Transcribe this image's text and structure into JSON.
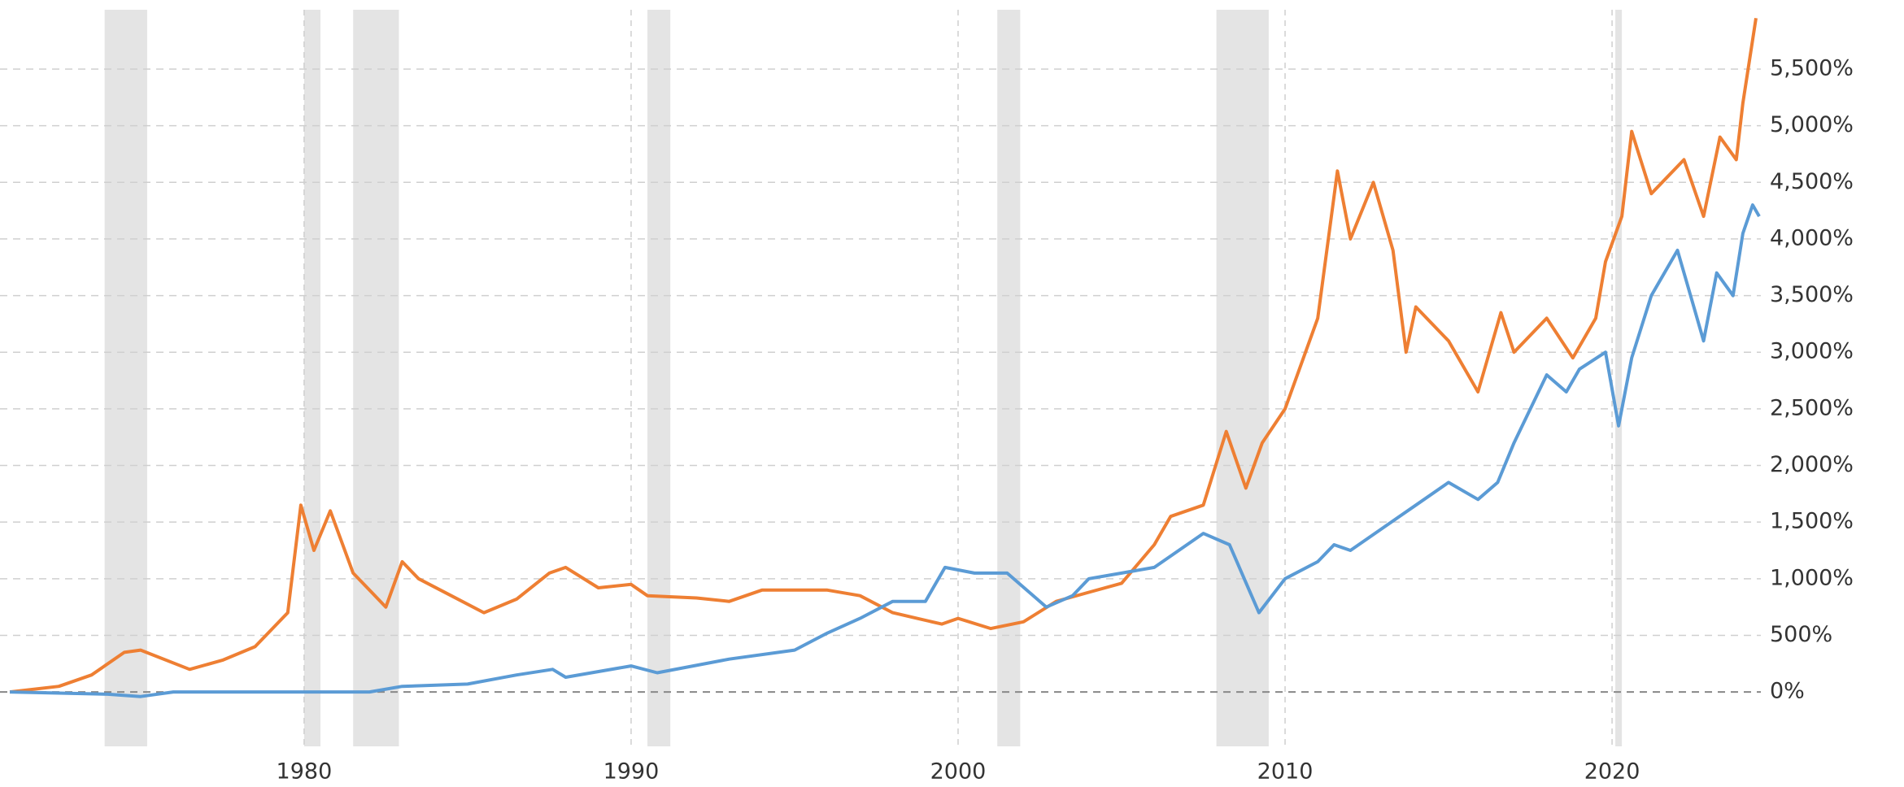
{
  "chart_data": {
    "type": "line",
    "xlim": [
      1970.7,
      2024.55
    ],
    "xticks": [
      1980,
      1990,
      2000,
      2010,
      2020
    ],
    "ylim": [
      -480,
      6110
    ],
    "yticks": [
      {
        "value": 0,
        "label": "0%"
      },
      {
        "value": 500,
        "label": "500%"
      },
      {
        "value": 1000,
        "label": "1,000%"
      },
      {
        "value": 1500,
        "label": "1,500%"
      },
      {
        "value": 2000,
        "label": "2,000%"
      },
      {
        "value": 2500,
        "label": "2,500%"
      },
      {
        "value": 3000,
        "label": "3,000%"
      },
      {
        "value": 3500,
        "label": "3,500%"
      },
      {
        "value": 4000,
        "label": "4,000%"
      },
      {
        "value": 4500,
        "label": "4,500%"
      },
      {
        "value": 5000,
        "label": "5,000%"
      },
      {
        "value": 5500,
        "label": "5,500%"
      }
    ],
    "grid": true,
    "shaded_ranges": [
      [
        1973.9,
        1975.2
      ],
      [
        1980.0,
        1980.5
      ],
      [
        1981.5,
        1982.9
      ],
      [
        1990.5,
        1991.2
      ],
      [
        2001.2,
        2001.9
      ],
      [
        2007.9,
        2009.5
      ],
      [
        2020.1,
        2020.3
      ]
    ],
    "shade_color": "#e4e4e4",
    "series": [
      {
        "color": "#ee7f33",
        "x": [
          1971,
          1972.5,
          1973.5,
          1974.5,
          1975,
          1976.5,
          1977.5,
          1978.5,
          1979.5,
          1979.9,
          1980.3,
          1980.8,
          1981.5,
          1982,
          1982.5,
          1983,
          1983.5,
          1984.5,
          1985.5,
          1986.5,
          1987.5,
          1988,
          1989,
          1990,
          1990.5,
          1992,
          1993,
          1994,
          1996,
          1997,
          1998,
          1999.5,
          2000,
          2001,
          2002,
          2003,
          2004,
          2005,
          2006,
          2006.5,
          2007.5,
          2008.2,
          2008.8,
          2009.3,
          2010,
          2010.5,
          2011,
          2011.6,
          2012,
          2012.7,
          2013.3,
          2013.7,
          2014,
          2015,
          2015.9,
          2016.6,
          2017,
          2018,
          2018.8,
          2019.5,
          2019.8,
          2020.3,
          2020.6,
          2021.2,
          2022.2,
          2022.8,
          2023.3,
          2023.8,
          2024,
          2024.4
        ],
        "values": [
          0,
          50,
          150,
          350,
          370,
          200,
          280,
          400,
          700,
          1650,
          1250,
          1600,
          1050,
          900,
          750,
          1150,
          1000,
          850,
          700,
          820,
          1050,
          1100,
          920,
          950,
          850,
          830,
          800,
          900,
          900,
          850,
          700,
          600,
          650,
          560,
          620,
          800,
          880,
          960,
          1300,
          1550,
          1650,
          2300,
          1800,
          2200,
          2500,
          2900,
          3300,
          4600,
          4000,
          4500,
          3900,
          3000,
          3400,
          3100,
          2650,
          3350,
          3000,
          3300,
          2950,
          3300,
          3800,
          4200,
          4950,
          4400,
          4700,
          4200,
          4900,
          4700,
          5200,
          5950
        ]
      },
      {
        "color": "#5b9bd5",
        "x": [
          1971,
          1974,
          1975,
          1976,
          1980,
          1982,
          1983,
          1985,
          1986.5,
          1987.6,
          1988,
          1990,
          1990.8,
          1993,
          1995,
          1996,
          1997,
          1998,
          1999,
          1999.6,
          2000.5,
          2001.5,
          2002.7,
          2003.5,
          2004,
          2005,
          2006,
          2007.5,
          2008.3,
          2009.2,
          2010,
          2011,
          2011.5,
          2012,
          2013,
          2014,
          2015,
          2015.9,
          2016.5,
          2017,
          2018,
          2018.6,
          2019,
          2019.8,
          2020.2,
          2020.6,
          2021.2,
          2022,
          2022.5,
          2022.8,
          2023.2,
          2023.7,
          2024,
          2024.3,
          2024.5
        ],
        "values": [
          0,
          -20,
          -40,
          0,
          0,
          0,
          50,
          70,
          150,
          200,
          130,
          230,
          170,
          290,
          370,
          520,
          650,
          800,
          800,
          1100,
          1050,
          1050,
          750,
          850,
          1000,
          1050,
          1100,
          1400,
          1300,
          700,
          1000,
          1150,
          1300,
          1250,
          1450,
          1650,
          1850,
          1700,
          1850,
          2200,
          2800,
          2650,
          2850,
          3000,
          2350,
          2950,
          3500,
          3900,
          3400,
          3100,
          3700,
          3500,
          4050,
          4300,
          4200
        ]
      }
    ]
  }
}
